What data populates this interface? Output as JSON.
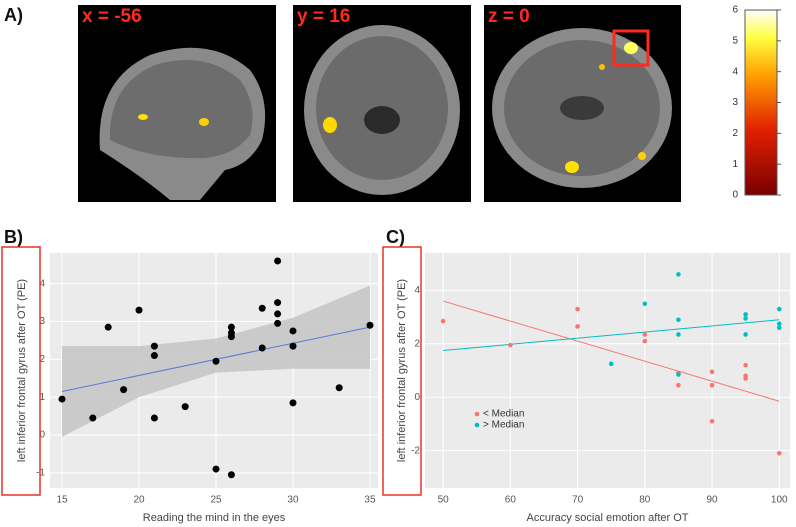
{
  "panels": [
    "A)",
    "B)",
    "C)"
  ],
  "slices": [
    "x = -56",
    "y = 16",
    "z = 0"
  ],
  "colorbar": {
    "ticks": [
      0,
      1,
      2,
      3,
      4,
      5,
      6
    ],
    "lim": [
      0,
      6
    ]
  },
  "chart_data": [
    {
      "type": "scatter",
      "xlabel": "Reading the mind in the eyes",
      "ylabel": "left inferior frontal gyrus after OT (PE)",
      "xlim": [
        14.22,
        35.52
      ],
      "ylim": [
        -1.4,
        4.81
      ],
      "xticks": [
        15,
        20,
        25,
        30,
        35
      ],
      "yticks": [
        -1,
        0,
        1,
        2,
        3,
        4
      ],
      "grid": true,
      "series": [
        {
          "color": "#000000",
          "x": [
            15,
            17,
            18,
            19,
            20,
            21,
            21,
            21,
            23,
            25,
            25,
            26,
            26,
            26,
            26,
            28,
            28,
            29,
            29,
            29,
            29,
            30,
            30,
            30,
            33,
            35
          ],
          "values": [
            0.95,
            0.45,
            2.85,
            1.2,
            3.3,
            2.35,
            2.1,
            0.45,
            0.75,
            1.95,
            -0.9,
            -1.05,
            2.85,
            2.7,
            2.6,
            3.35,
            2.3,
            4.6,
            3.5,
            3.2,
            2.95,
            2.75,
            2.35,
            0.85,
            1.25,
            2.9
          ]
        }
      ],
      "fits": [
        {
          "color": "#5b7bd5",
          "x": [
            15,
            35
          ],
          "y": [
            1.15,
            2.85
          ]
        }
      ],
      "band": {
        "color": "#c4c4c4",
        "x": [
          15,
          20,
          25,
          30,
          35
        ],
        "lower": [
          -0.05,
          1.0,
          1.65,
          1.75,
          1.75
        ],
        "upper": [
          2.35,
          2.35,
          2.55,
          3.1,
          3.95
        ]
      }
    },
    {
      "type": "scatter",
      "xlabel": "Accuracy social emotion after OT",
      "ylabel": "left inferior frontal gyrus after OT (PE)",
      "xlim": [
        47.3,
        101.6
      ],
      "ylim": [
        -3.4,
        5.4
      ],
      "xticks": [
        50,
        60,
        70,
        80,
        90,
        100
      ],
      "yticks": [
        -2,
        0,
        2,
        4
      ],
      "grid": true,
      "legend": "bottom-left",
      "series": [
        {
          "name": "< Median",
          "color": "#f8766d",
          "x": [
            50,
            60,
            70,
            70,
            80,
            80,
            85,
            85,
            90,
            90,
            90,
            95,
            95,
            95,
            100
          ],
          "values": [
            2.85,
            1.95,
            3.3,
            2.65,
            2.35,
            2.1,
            0.9,
            0.45,
            0.95,
            0.45,
            -0.9,
            1.2,
            0.8,
            0.7,
            -2.1
          ]
        },
        {
          "name": "> Median",
          "color": "#00bfc4",
          "x": [
            75,
            80,
            85,
            85,
            85,
            85,
            95,
            95,
            95,
            100,
            100,
            100
          ],
          "values": [
            1.25,
            3.5,
            4.6,
            2.9,
            2.35,
            0.85,
            3.1,
            2.95,
            2.35,
            3.3,
            2.75,
            2.6
          ]
        }
      ],
      "fits": [
        {
          "color": "#f8766d",
          "x": [
            50,
            100
          ],
          "y": [
            3.6,
            -0.15
          ]
        },
        {
          "color": "#00bfc4",
          "x": [
            50,
            100
          ],
          "y": [
            1.75,
            2.9
          ]
        }
      ]
    }
  ]
}
